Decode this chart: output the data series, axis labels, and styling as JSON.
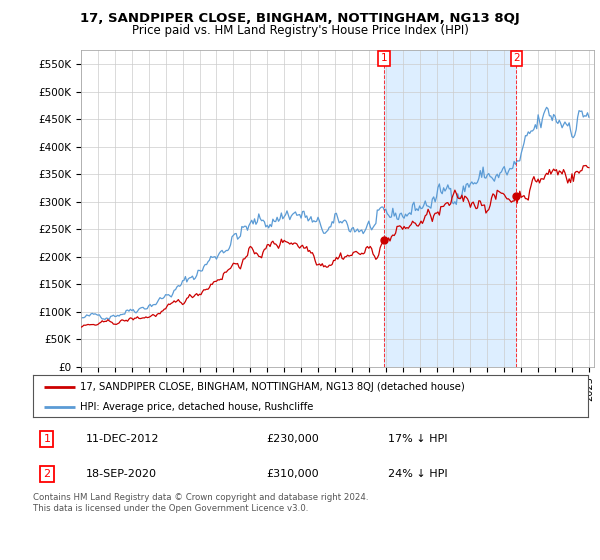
{
  "title": "17, SANDPIPER CLOSE, BINGHAM, NOTTINGHAM, NG13 8QJ",
  "subtitle": "Price paid vs. HM Land Registry's House Price Index (HPI)",
  "ylabel_ticks": [
    "£0",
    "£50K",
    "£100K",
    "£150K",
    "£200K",
    "£250K",
    "£300K",
    "£350K",
    "£400K",
    "£450K",
    "£500K",
    "£550K"
  ],
  "ytick_values": [
    0,
    50000,
    100000,
    150000,
    200000,
    250000,
    300000,
    350000,
    400000,
    450000,
    500000,
    550000
  ],
  "ylim": [
    0,
    575000
  ],
  "xlim_left": 1995,
  "xlim_right": 2025.3,
  "hpi_color": "#5b9bd5",
  "price_color": "#cc0000",
  "fill_color": "#ddeeff",
  "marker1_x": 2012.92,
  "marker1_y": 230000,
  "marker2_x": 2020.72,
  "marker2_y": 310000,
  "legend_label_price": "17, SANDPIPER CLOSE, BINGHAM, NOTTINGHAM, NG13 8QJ (detached house)",
  "legend_label_hpi": "HPI: Average price, detached house, Rushcliffe",
  "footnote": "Contains HM Land Registry data © Crown copyright and database right 2024.\nThis data is licensed under the Open Government Licence v3.0.",
  "background_color": "#ffffff",
  "plot_bg_color": "#ffffff",
  "grid_color": "#cccccc",
  "title_fontsize": 9.5,
  "subtitle_fontsize": 8.5
}
